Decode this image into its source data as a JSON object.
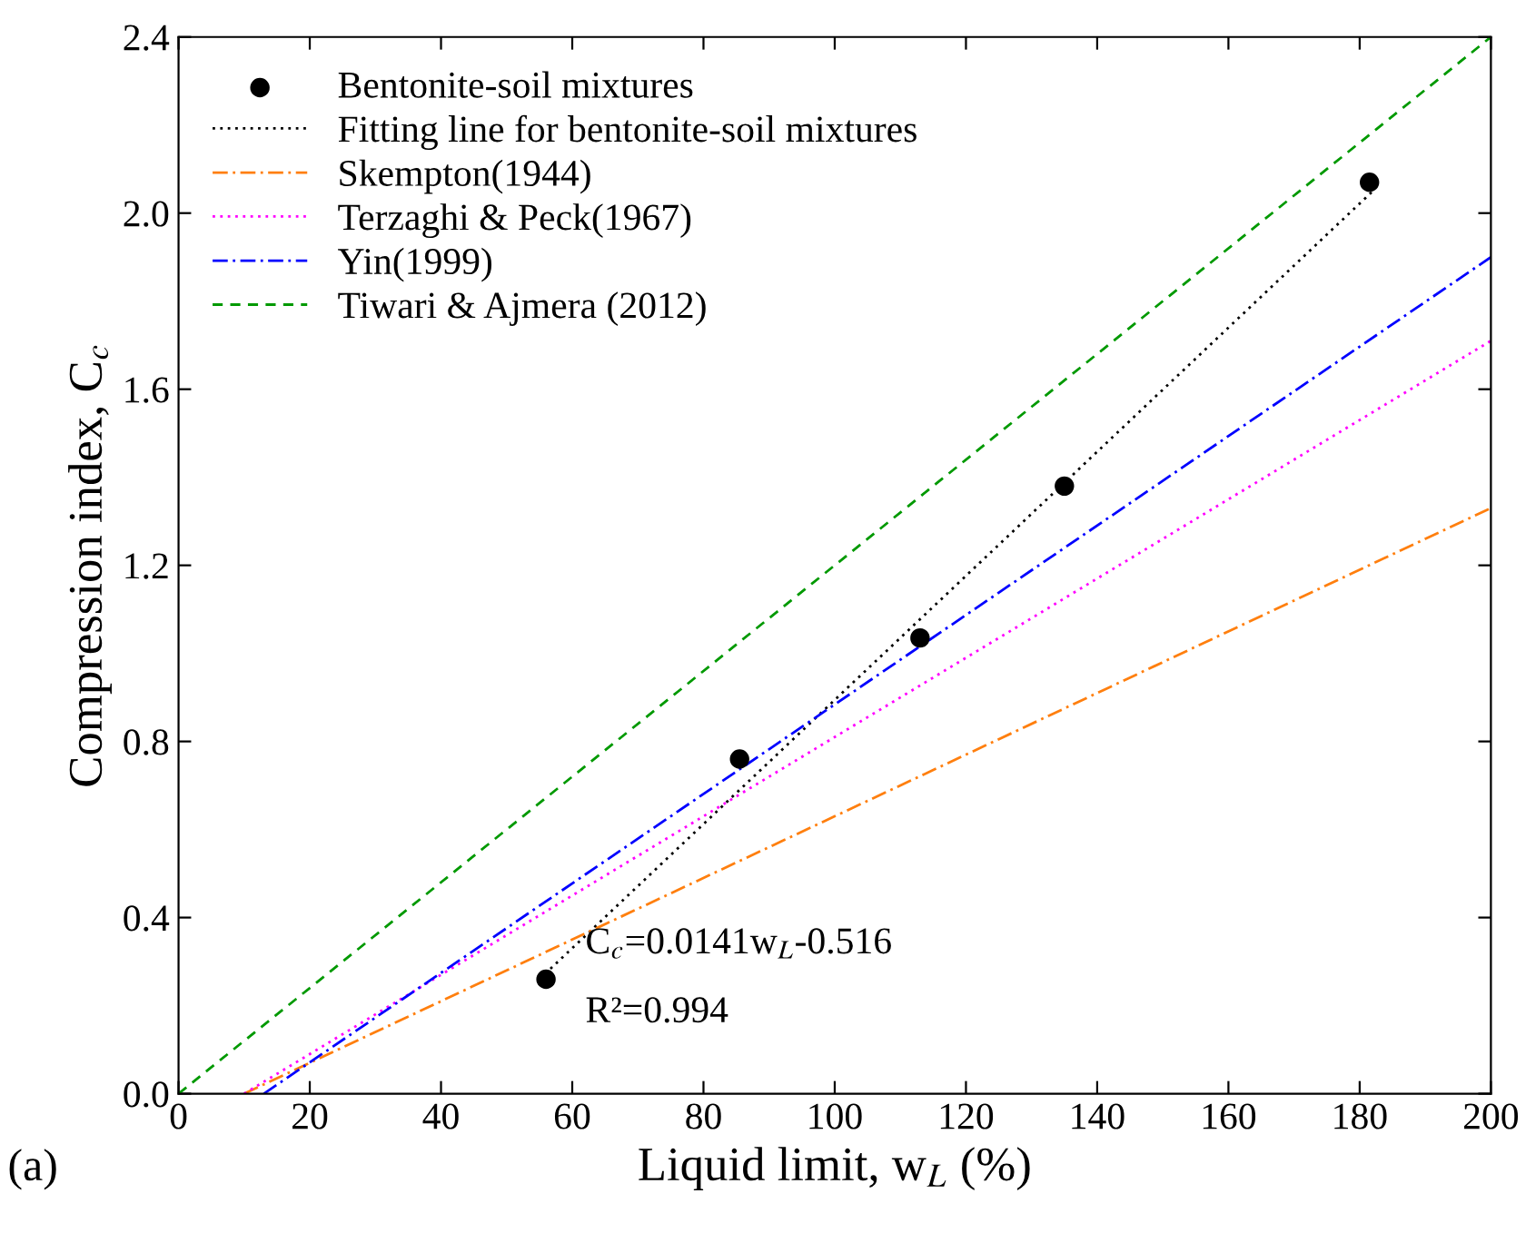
{
  "chart_data": {
    "type": "scatter",
    "xlabel": "Liquid limit, w$_{L}$ (%)",
    "ylabel": "Compression index, C$_{c}$",
    "xlim": [
      0,
      200
    ],
    "ylim": [
      0,
      2.4
    ],
    "xticks": [
      0,
      20,
      40,
      60,
      80,
      100,
      120,
      140,
      160,
      180,
      200
    ],
    "yticks": [
      {
        "value": 0,
        "label": "0.0"
      },
      {
        "value": 0.4,
        "label": "0.4"
      },
      {
        "value": 0.8,
        "label": "0.8"
      },
      {
        "value": 1.2,
        "label": "1.2"
      },
      {
        "value": 1.6,
        "label": "1.6"
      },
      {
        "value": 2.0,
        "label": "2.0"
      },
      {
        "value": 2.4,
        "label": "2.4"
      }
    ],
    "grid": false,
    "legend": "top left",
    "series": [
      {
        "name": "Bentonite-soil mixtures",
        "marker": "circle",
        "color": "#000000",
        "x": [
          56,
          85.5,
          113,
          135,
          181.5
        ],
        "values": [
          0.26,
          0.76,
          1.035,
          1.38,
          2.07
        ]
      },
      {
        "name": "Fitting line for bentonite-soil mixtures",
        "type": "line",
        "line_style": "dotted",
        "color": "#000000",
        "x": [
          55,
          182
        ],
        "values": [
          0.26,
          2.05
        ]
      },
      {
        "name": "Skempton(1944)",
        "type": "line",
        "line_style": "dashdot",
        "color": "#ff7f0e",
        "x": [
          10,
          200
        ],
        "values": [
          0,
          1.33
        ]
      },
      {
        "name": "Terzaghi & Peck(1967)",
        "type": "line",
        "line_style": "dotted",
        "color": "#ff00ff",
        "x": [
          10,
          200
        ],
        "values": [
          0,
          1.71
        ]
      },
      {
        "name": "Yin(1999)",
        "type": "line",
        "line_style": "dashdot",
        "color": "#0000ff",
        "x": [
          13,
          200
        ],
        "values": [
          0,
          1.9
        ]
      },
      {
        "name": "Tiwari & Ajmera (2012)",
        "type": "line",
        "line_style": "dashed",
        "color": "#009900",
        "x": [
          0,
          200
        ],
        "values": [
          0,
          2.4
        ]
      }
    ],
    "annotations": [
      "C$_{c}$=0.0141w$_{L}$-0.516",
      "R²=0.994",
      "(a)"
    ]
  }
}
